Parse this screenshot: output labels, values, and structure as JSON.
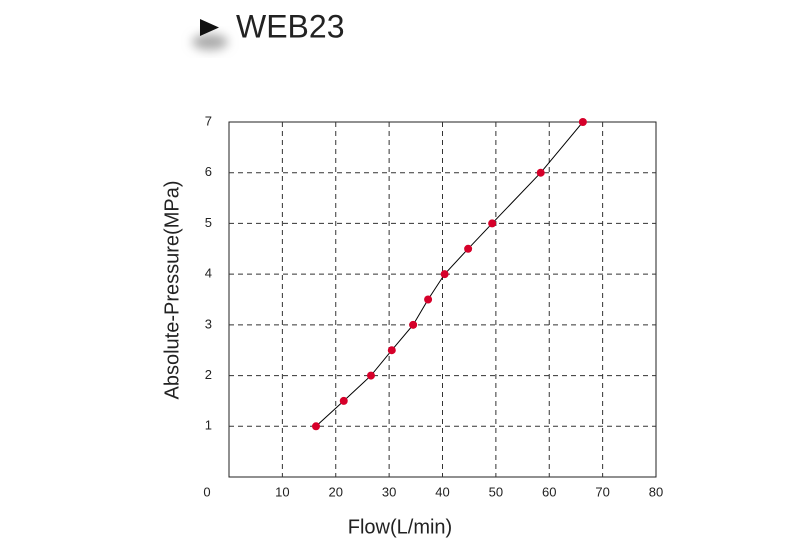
{
  "chart_data": {
    "type": "line",
    "title": "WEB23",
    "x_label": "Flow(L/min)",
    "y_label": "Absolute-Pressure(MPa)",
    "x": [
      16.3,
      21.5,
      26.6,
      30.5,
      34.5,
      37.3,
      40.4,
      44.8,
      49.3,
      58.4,
      66.3
    ],
    "series": [
      {
        "name": "WEB23",
        "color": "#d6002a",
        "line_color": "#000000",
        "values": [
          1.0,
          1.5,
          2.0,
          2.5,
          3.0,
          3.5,
          4.0,
          4.5,
          5.0,
          6.0,
          7.0
        ]
      }
    ],
    "xlim": [
      0,
      80
    ],
    "ylim": [
      0,
      7
    ],
    "xticks": [
      0,
      10,
      20,
      30,
      40,
      50,
      60,
      70,
      80
    ],
    "yticks": [
      1,
      2,
      3,
      4,
      5,
      6,
      7
    ],
    "grid": true
  }
}
